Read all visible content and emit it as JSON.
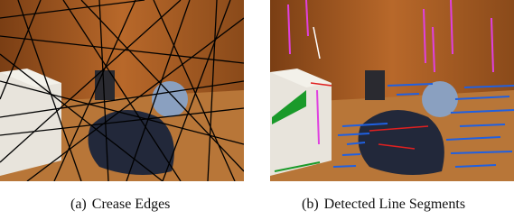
{
  "figures": [
    {
      "label": "(a)",
      "caption": "Crease Edges"
    },
    {
      "label": "(b)",
      "caption": "Detected Line Segments"
    }
  ]
}
